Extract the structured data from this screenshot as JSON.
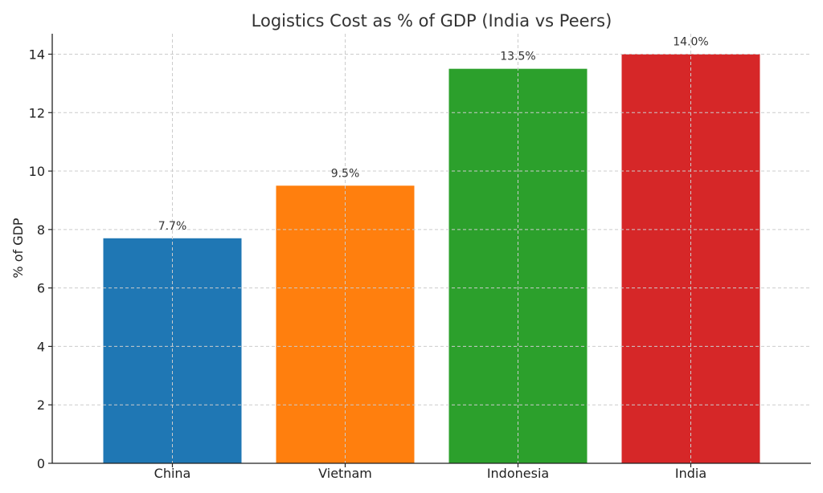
{
  "chart_data": {
    "type": "bar",
    "title": "Logistics Cost as % of GDP (India vs Peers)",
    "xlabel": "",
    "ylabel": "% of GDP",
    "categories": [
      "China",
      "Vietnam",
      "Indonesia",
      "India"
    ],
    "values": [
      7.7,
      9.5,
      13.5,
      14.0
    ],
    "data_labels": [
      "7.7%",
      "9.5%",
      "13.5%",
      "14.0%"
    ],
    "colors": [
      "#1f77b4",
      "#ff7f0e",
      "#2ca02c",
      "#d62728"
    ],
    "ylim": [
      0,
      14.7
    ],
    "yticks": [
      0,
      2,
      4,
      6,
      8,
      10,
      12,
      14
    ],
    "grid": true,
    "legend": "none"
  }
}
